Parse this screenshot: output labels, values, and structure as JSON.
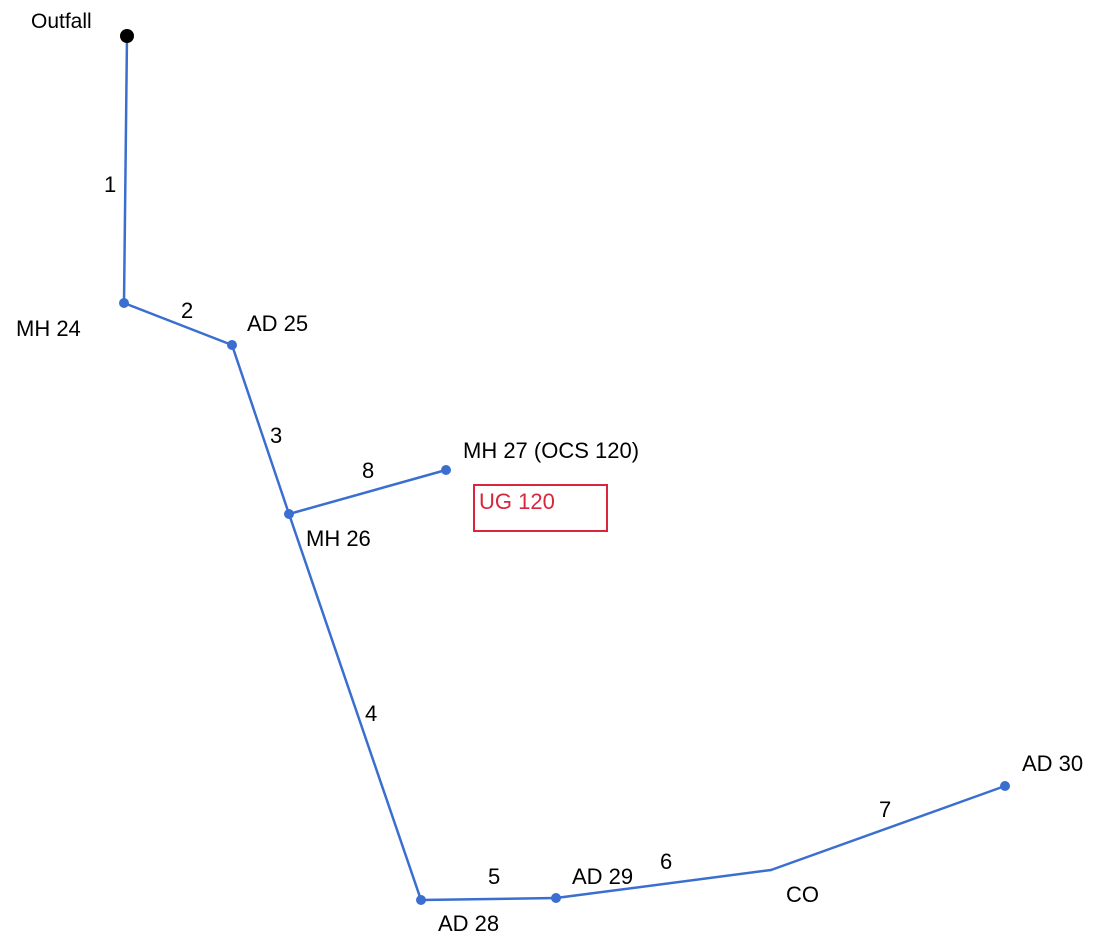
{
  "outfall": {
    "label": "Outfall"
  },
  "nodes": {
    "mh24": "MH 24",
    "ad25": "AD 25",
    "mh26": "MH 26",
    "mh27": "MH 27 (OCS 120)",
    "ad28": "AD 28",
    "ad29": "AD 29",
    "co": "CO",
    "ad30": "AD 30"
  },
  "segments": {
    "s1": "1",
    "s2": "2",
    "s3": "3",
    "s4": "4",
    "s5": "5",
    "s6": "6",
    "s7": "7",
    "s8": "8"
  },
  "tag": {
    "label": "UG 120",
    "color": "#d9263d"
  },
  "colors": {
    "pipe": "#3a6fd0",
    "outfall": "#000000"
  }
}
